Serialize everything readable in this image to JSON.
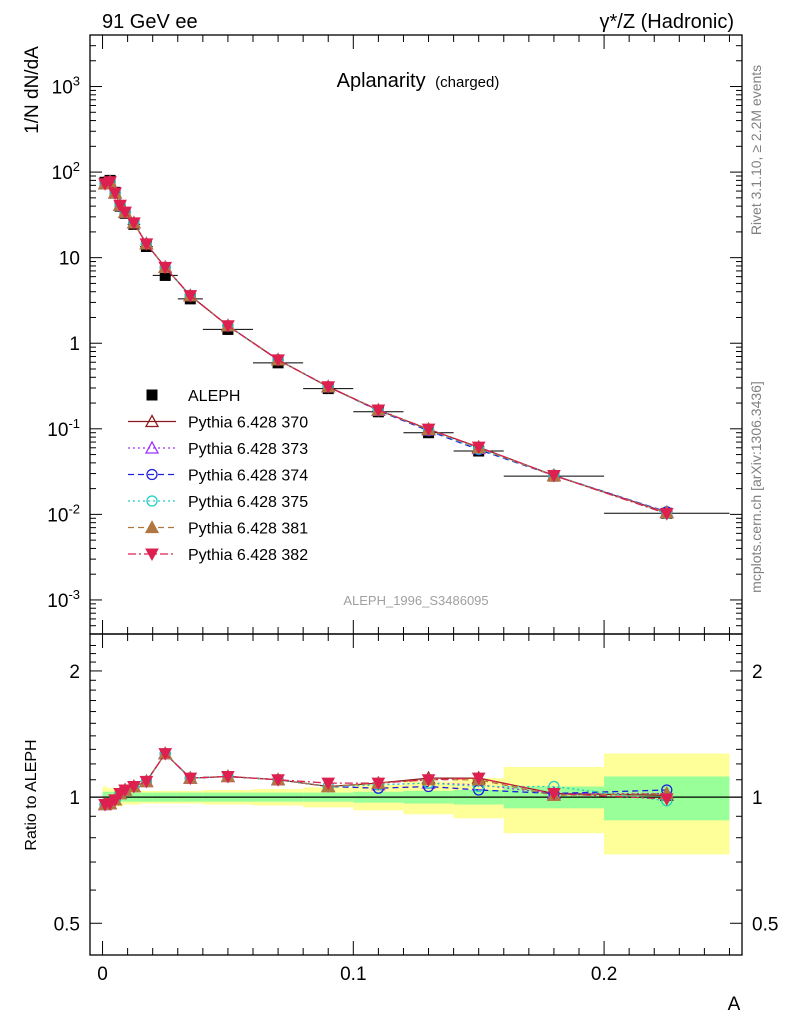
{
  "header": {
    "left": "91 GeV ee",
    "right": "γ*/Z (Hadronic)"
  },
  "side_text": {
    "rivet": "Rivet 3.1.10, ≥ 2.2M events",
    "mcplots": "mcplots.cern.ch [arXiv:1306.3436]"
  },
  "chart_data": [
    {
      "type": "scatter",
      "title": "Aplanarity",
      "subtitle": "(charged)",
      "ylabel": "1/N dN/dA",
      "xlabel": "",
      "watermark": "ALEPH_1996_S3486095",
      "yscale": "log",
      "ylim": [
        0.0004,
        4000
      ],
      "xlim": [
        -0.005,
        0.255
      ],
      "ytick_labels": [
        "10^-3",
        "10^-2",
        "10^-1",
        "1",
        "10",
        "10^2",
        "10^3"
      ],
      "legend_position": "lower-left",
      "x": [
        0.001,
        0.003,
        0.005,
        0.007,
        0.009,
        0.0125,
        0.0175,
        0.025,
        0.035,
        0.05,
        0.07,
        0.09,
        0.11,
        0.13,
        0.15,
        0.18,
        0.225
      ],
      "x_err": [
        0.001,
        0.001,
        0.001,
        0.001,
        0.001,
        0.0025,
        0.0025,
        0.005,
        0.005,
        0.01,
        0.01,
        0.01,
        0.01,
        0.01,
        0.01,
        0.02,
        0.025
      ],
      "series": [
        {
          "name": "ALEPH",
          "color": "#000000",
          "marker": "square-filled",
          "line": "none",
          "values": [
            76,
            80,
            58,
            40,
            33,
            24.5,
            13.5,
            6.2,
            3.3,
            1.45,
            0.59,
            0.295,
            0.158,
            0.09,
            0.055,
            0.028,
            0.0103
          ]
        },
        {
          "name": "Pythia 6.428 370",
          "color": "#8b1a1a",
          "marker": "triangle-up-open",
          "line": "solid",
          "values": [
            73,
            77,
            57,
            41,
            34,
            25.5,
            14.5,
            7.7,
            3.6,
            1.6,
            0.64,
            0.31,
            0.165,
            0.099,
            0.061,
            0.0285,
            0.0105
          ]
        },
        {
          "name": "Pythia 6.428 373",
          "color": "#9b30ff",
          "marker": "triangle-up-open",
          "line": "dotted",
          "values": [
            73,
            77,
            57,
            41,
            34,
            25.5,
            14.5,
            7.7,
            3.6,
            1.6,
            0.64,
            0.31,
            0.165,
            0.097,
            0.059,
            0.0285,
            0.0106
          ]
        },
        {
          "name": "Pythia 6.428 374",
          "color": "#2020dd",
          "marker": "circle-open",
          "line": "dashed",
          "values": [
            73,
            77,
            57,
            41,
            34,
            25.5,
            14.5,
            7.7,
            3.6,
            1.6,
            0.64,
            0.31,
            0.163,
            0.095,
            0.057,
            0.0285,
            0.0107
          ]
        },
        {
          "name": "Pythia 6.428 375",
          "color": "#20d0c0",
          "marker": "circle-open",
          "line": "dotted",
          "values": [
            73,
            77,
            57,
            41,
            34,
            25.5,
            14.5,
            7.7,
            3.6,
            1.6,
            0.64,
            0.31,
            0.165,
            0.097,
            0.058,
            0.0288,
            0.0102
          ]
        },
        {
          "name": "Pythia 6.428 381",
          "color": "#b07840",
          "marker": "triangle-up-filled",
          "line": "dashed",
          "values": [
            73,
            77,
            57,
            41,
            34,
            25.5,
            14.5,
            7.7,
            3.6,
            1.6,
            0.64,
            0.31,
            0.166,
            0.098,
            0.06,
            0.0283,
            0.0105
          ]
        },
        {
          "name": "Pythia 6.428 382",
          "color": "#dd2050",
          "marker": "triangle-down-filled",
          "line": "dashdot",
          "values": [
            73,
            77,
            57,
            41,
            34,
            25.5,
            14.5,
            7.7,
            3.6,
            1.6,
            0.64,
            0.31,
            0.166,
            0.099,
            0.061,
            0.0285,
            0.0102
          ]
        }
      ]
    },
    {
      "type": "scatter",
      "title": "",
      "ylabel": "Ratio to ALEPH",
      "xlabel": "A",
      "yscale": "log",
      "ylim": [
        0.42,
        2.45
      ],
      "xlim": [
        -0.005,
        0.255
      ],
      "ytick_labels": [
        "0.5",
        "1",
        "2"
      ],
      "xtick_labels": [
        "0",
        "0.1",
        "0.2"
      ],
      "xticks": [
        0,
        0.1,
        0.2
      ],
      "band_edges": [
        0,
        0.002,
        0.004,
        0.006,
        0.008,
        0.01,
        0.015,
        0.02,
        0.03,
        0.04,
        0.06,
        0.08,
        0.1,
        0.12,
        0.14,
        0.16,
        0.2,
        0.25
      ],
      "stat_band": [
        0.03,
        0.03,
        0.03,
        0.025,
        0.025,
        0.025,
        0.025,
        0.025,
        0.025,
        0.025,
        0.025,
        0.025,
        0.03,
        0.035,
        0.04,
        0.06,
        0.12
      ],
      "total_band": [
        0.06,
        0.05,
        0.05,
        0.05,
        0.04,
        0.04,
        0.035,
        0.035,
        0.035,
        0.04,
        0.045,
        0.055,
        0.07,
        0.09,
        0.11,
        0.18,
        0.27
      ],
      "stat_color": "#99ff99",
      "total_color": "#ffff99",
      "series": [
        {
          "name": "Pythia 6.428 370",
          "color": "#8b1a1a",
          "marker": "triangle-up-open",
          "line": "solid",
          "values": [
            0.96,
            0.965,
            0.985,
            1.02,
            1.04,
            1.06,
            1.09,
            1.27,
            1.11,
            1.12,
            1.1,
            1.06,
            1.08,
            1.11,
            1.11,
            1.02,
            1.01
          ]
        },
        {
          "name": "Pythia 6.428 373",
          "color": "#9b30ff",
          "marker": "triangle-up-open",
          "line": "dotted",
          "values": [
            0.96,
            0.965,
            0.985,
            1.02,
            1.04,
            1.06,
            1.09,
            1.27,
            1.11,
            1.12,
            1.1,
            1.06,
            1.07,
            1.08,
            1.07,
            1.02,
            1.02
          ]
        },
        {
          "name": "Pythia 6.428 374",
          "color": "#2020dd",
          "marker": "circle-open",
          "line": "dashed",
          "values": [
            0.96,
            0.965,
            0.985,
            1.02,
            1.04,
            1.06,
            1.09,
            1.27,
            1.11,
            1.12,
            1.1,
            1.06,
            1.05,
            1.06,
            1.04,
            1.02,
            1.04
          ]
        },
        {
          "name": "Pythia 6.428 375",
          "color": "#20d0c0",
          "marker": "circle-open",
          "line": "dotted",
          "values": [
            0.96,
            0.965,
            0.985,
            1.02,
            1.04,
            1.06,
            1.09,
            1.27,
            1.11,
            1.12,
            1.1,
            1.06,
            1.07,
            1.08,
            1.06,
            1.06,
            0.98
          ]
        },
        {
          "name": "Pythia 6.428 381",
          "color": "#b07840",
          "marker": "triangle-up-filled",
          "line": "dashed",
          "values": [
            0.96,
            0.965,
            0.985,
            1.02,
            1.04,
            1.06,
            1.09,
            1.27,
            1.11,
            1.12,
            1.1,
            1.06,
            1.08,
            1.1,
            1.1,
            1.01,
            1.02
          ]
        },
        {
          "name": "Pythia 6.428 382",
          "color": "#dd2050",
          "marker": "triangle-down-filled",
          "line": "dashdot",
          "values": [
            0.96,
            0.965,
            0.985,
            1.02,
            1.04,
            1.06,
            1.09,
            1.27,
            1.11,
            1.12,
            1.1,
            1.08,
            1.08,
            1.1,
            1.11,
            1.02,
            0.99
          ]
        }
      ]
    }
  ]
}
